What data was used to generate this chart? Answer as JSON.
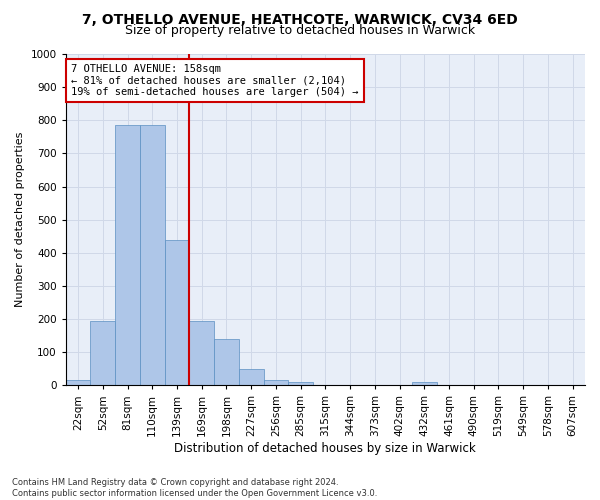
{
  "title1": "7, OTHELLO AVENUE, HEATHCOTE, WARWICK, CV34 6ED",
  "title2": "Size of property relative to detached houses in Warwick",
  "xlabel": "Distribution of detached houses by size in Warwick",
  "ylabel": "Number of detached properties",
  "footer": "Contains HM Land Registry data © Crown copyright and database right 2024.\nContains public sector information licensed under the Open Government Licence v3.0.",
  "categories": [
    "22sqm",
    "52sqm",
    "81sqm",
    "110sqm",
    "139sqm",
    "169sqm",
    "198sqm",
    "227sqm",
    "256sqm",
    "285sqm",
    "315sqm",
    "344sqm",
    "373sqm",
    "402sqm",
    "432sqm",
    "461sqm",
    "490sqm",
    "519sqm",
    "549sqm",
    "578sqm",
    "607sqm"
  ],
  "values": [
    15,
    195,
    785,
    785,
    440,
    195,
    140,
    50,
    15,
    10,
    0,
    0,
    0,
    0,
    10,
    0,
    0,
    0,
    0,
    0,
    0
  ],
  "bar_color": "#aec6e8",
  "bar_edge_color": "#5a8fc2",
  "property_line_x": 4.5,
  "annotation_title": "7 OTHELLO AVENUE: 158sqm",
  "annotation_line1": "← 81% of detached houses are smaller (2,104)",
  "annotation_line2": "19% of semi-detached houses are larger (504) →",
  "annotation_box_color": "#ffffff",
  "annotation_box_edge": "#cc0000",
  "vline_color": "#cc0000",
  "grid_color": "#d0d8e8",
  "background_color": "#e8eef8",
  "ylim": [
    0,
    1000
  ],
  "yticks": [
    0,
    100,
    200,
    300,
    400,
    500,
    600,
    700,
    800,
    900,
    1000
  ],
  "title1_fontsize": 10,
  "title2_fontsize": 9,
  "xlabel_fontsize": 8.5,
  "ylabel_fontsize": 8,
  "tick_fontsize": 7.5,
  "annotation_fontsize": 7.5,
  "footer_fontsize": 6
}
